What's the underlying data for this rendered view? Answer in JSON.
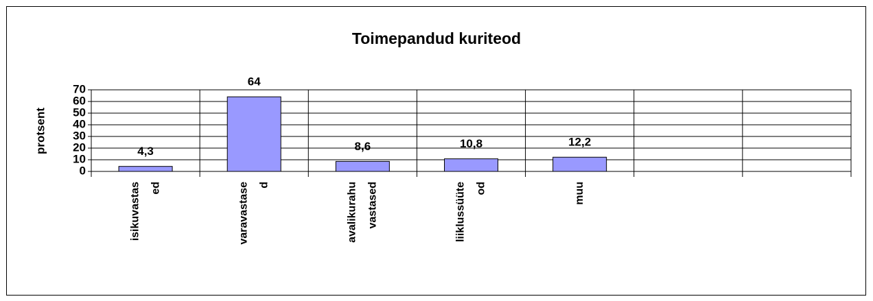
{
  "chart_data": {
    "type": "bar",
    "title": "Toimepandud kuriteod",
    "ylabel": "protsent",
    "categories": [
      [
        "isikuvastas",
        "ed"
      ],
      [
        "varavastase",
        "d"
      ],
      [
        "avalikurahu",
        "vastased"
      ],
      [
        "liiklussüüte",
        "od"
      ],
      [
        "muu"
      ],
      null,
      null
    ],
    "values": [
      4.3,
      64,
      8.6,
      10.8,
      12.2,
      null,
      null
    ],
    "value_labels": [
      "4,3",
      "64",
      "8,6",
      "10,8",
      "12,2",
      null,
      null
    ],
    "color": "#9999ff",
    "ylim": [
      0,
      70
    ],
    "yticks": [
      0,
      10,
      20,
      30,
      40,
      50,
      60,
      70
    ],
    "grid": true
  }
}
